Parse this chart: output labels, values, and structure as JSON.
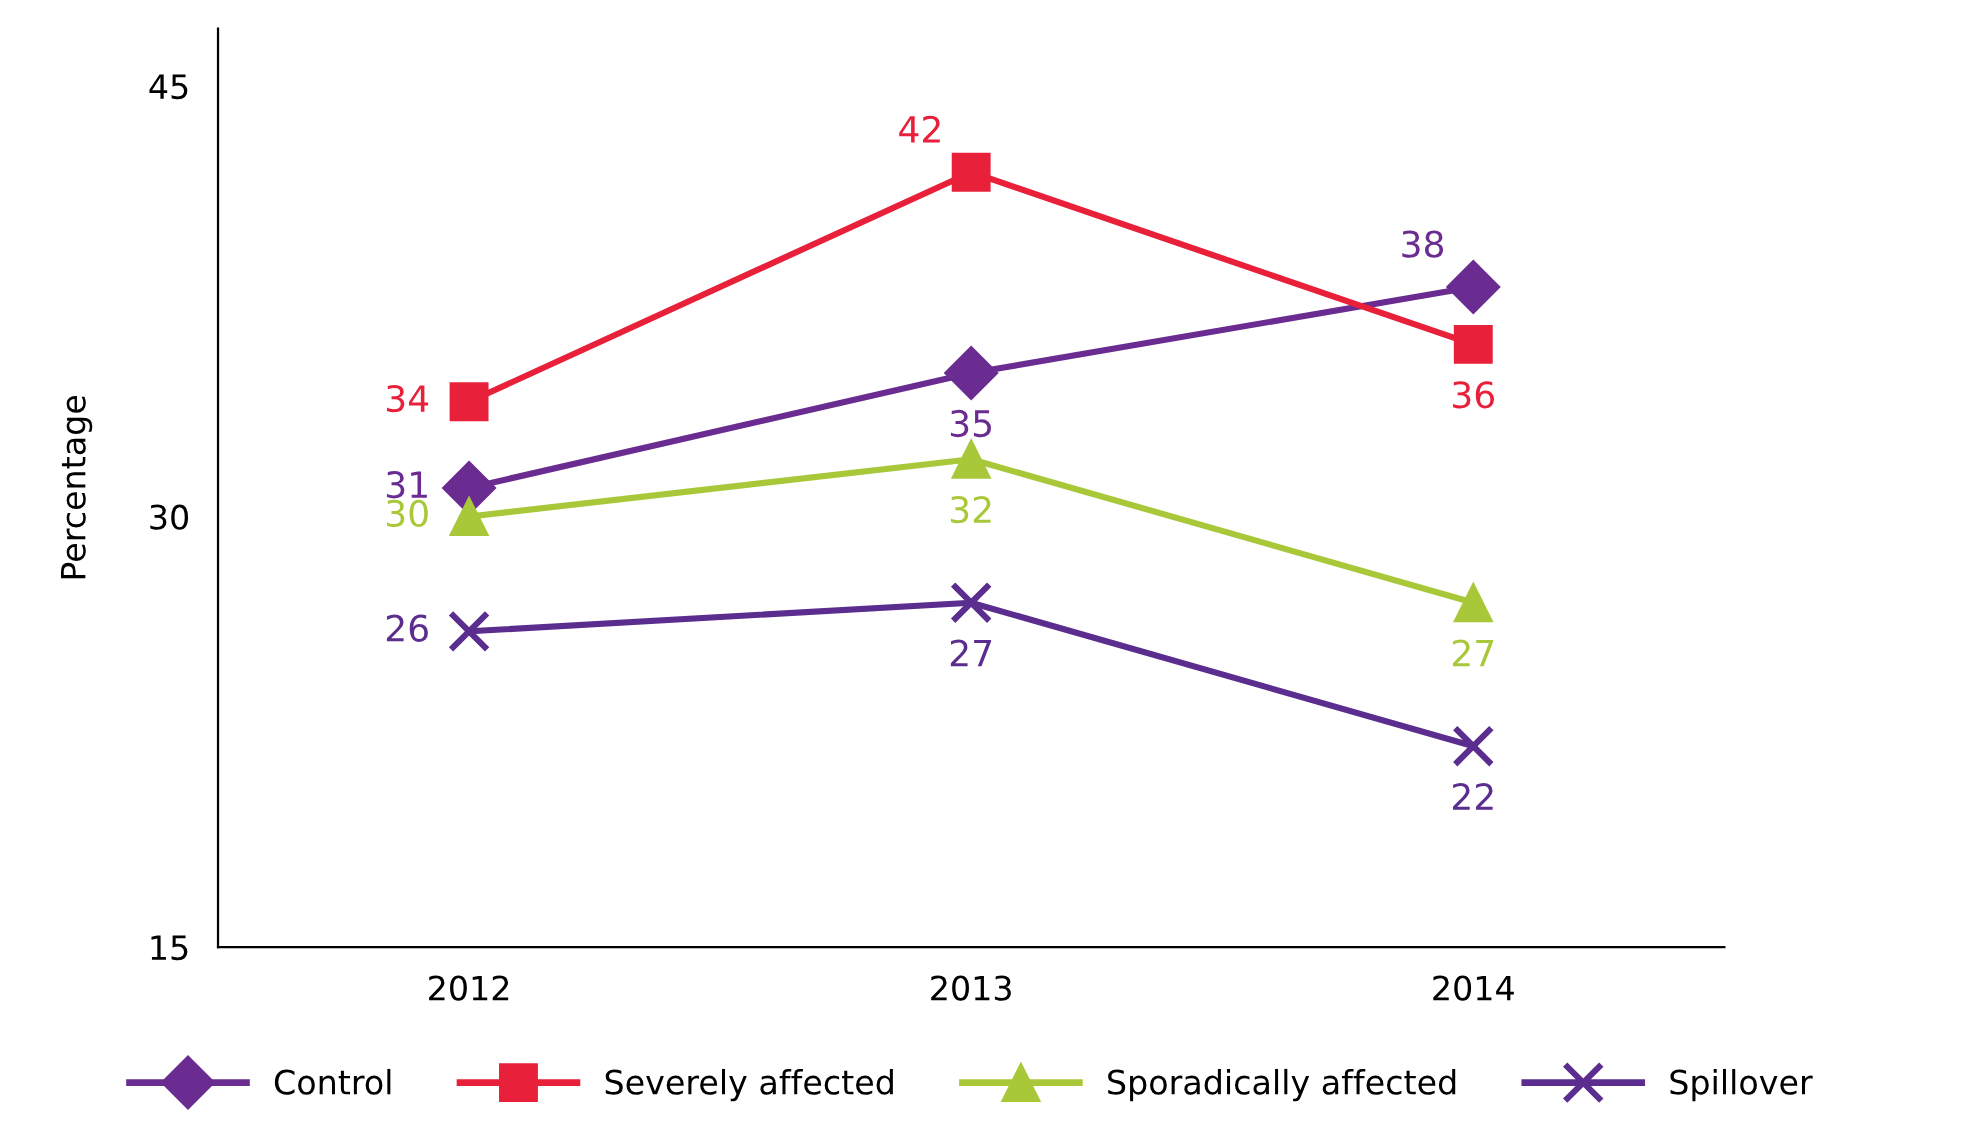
{
  "chart_data": {
    "type": "line",
    "ylabel": "Percentage",
    "categories": [
      "2012",
      "2013",
      "2014"
    ],
    "series": [
      {
        "name": "Control",
        "color": "#6a2c91",
        "marker": "diamond",
        "values": [
          31,
          35,
          38
        ]
      },
      {
        "name": "Severely affected",
        "color": "#e8203a",
        "marker": "square",
        "values": [
          34,
          42,
          36
        ]
      },
      {
        "name": "Sporadically affected",
        "color": "#a8c83a",
        "marker": "triangle",
        "values": [
          30,
          32,
          27
        ]
      },
      {
        "name": "Spillover",
        "color": "#5b2d8e",
        "marker": "cross",
        "values": [
          26,
          27,
          22
        ]
      }
    ],
    "ylim": [
      15,
      47
    ],
    "yticks": [
      15,
      30,
      45
    ],
    "grid": false,
    "legend": "bottom",
    "data_labels": true,
    "line_style": "solid"
  }
}
